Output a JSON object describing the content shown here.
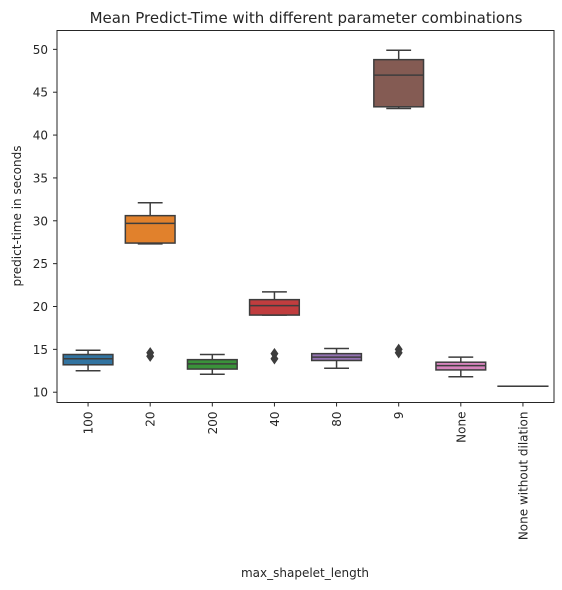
{
  "chart_data": {
    "type": "box",
    "title": "Mean Predict-Time with different parameter combinations",
    "xlabel": "max_shapelet_length",
    "ylabel": "predict-time in seconds",
    "ylim": [
      8.8,
      52.2
    ],
    "yticks": [
      10,
      15,
      20,
      25,
      30,
      35,
      40,
      45,
      50
    ],
    "grid": false,
    "legend": "none",
    "categories": [
      "100",
      "20",
      "200",
      "40",
      "80",
      "9",
      "None",
      "None without dilation"
    ],
    "boxes": [
      {
        "category": "100",
        "color": "#3274a1",
        "whisker_low": 12.5,
        "q1": 13.2,
        "median": 13.9,
        "q3": 14.4,
        "whisker_high": 14.9,
        "outliers": []
      },
      {
        "category": "20",
        "color": "#e1812c",
        "whisker_low": 27.3,
        "q1": 27.4,
        "median": 29.7,
        "q3": 30.6,
        "whisker_high": 32.1,
        "outliers": [
          14.2,
          14.6
        ]
      },
      {
        "category": "200",
        "color": "#3a923a",
        "whisker_low": 12.1,
        "q1": 12.7,
        "median": 13.3,
        "q3": 13.8,
        "whisker_high": 14.4,
        "outliers": []
      },
      {
        "category": "40",
        "color": "#c03d3e",
        "whisker_low": 19.0,
        "q1": 19.0,
        "median": 20.1,
        "q3": 20.8,
        "whisker_high": 21.7,
        "outliers": [
          13.9,
          14.5
        ]
      },
      {
        "category": "80",
        "color": "#9372b2",
        "whisker_low": 12.8,
        "q1": 13.7,
        "median": 14.1,
        "q3": 14.5,
        "whisker_high": 15.1,
        "outliers": []
      },
      {
        "category": "9",
        "color": "#845b53",
        "whisker_low": 43.1,
        "q1": 43.3,
        "median": 47.0,
        "q3": 48.8,
        "whisker_high": 49.9,
        "outliers": [
          14.6,
          15.0
        ]
      },
      {
        "category": "None",
        "color": "#d684bd",
        "whisker_low": 11.8,
        "q1": 12.6,
        "median": 13.1,
        "q3": 13.5,
        "whisker_high": 14.1,
        "outliers": []
      },
      {
        "category": "None without dilation",
        "color": "#7f7f7f",
        "whisker_low": 10.7,
        "q1": 10.7,
        "median": 10.7,
        "q3": 10.7,
        "whisker_high": 10.7,
        "outliers": []
      }
    ]
  }
}
